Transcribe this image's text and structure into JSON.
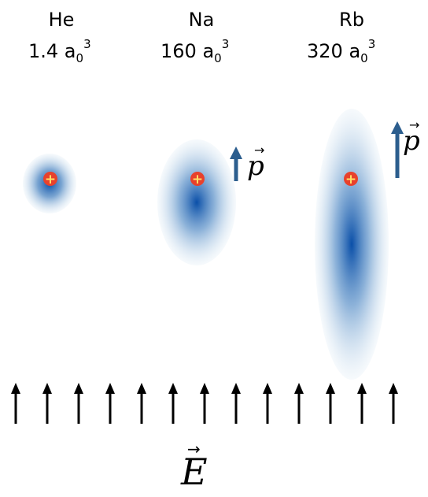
{
  "atoms": [
    {
      "element": "He",
      "polarizability": "1.4 a",
      "unit_sub": "0",
      "unit_sup": "3"
    },
    {
      "element": "Na",
      "polarizability": "160 a",
      "unit_sub": "0",
      "unit_sup": "3"
    },
    {
      "element": "Rb",
      "polarizability": "320 a",
      "unit_sub": "0",
      "unit_sup": "3"
    }
  ],
  "dipole_label": "p",
  "field_label": "E",
  "nucleus_symbol": "+",
  "field_arrow_count": 13,
  "colors": {
    "cloud_core": "#0a4fa8",
    "cloud_edge": "#dceaf4",
    "dipole_arrow": "#2c5e8e",
    "field_arrow": "#000000",
    "nucleus_fill": "#e8412c",
    "nucleus_plus": "#ffe066"
  }
}
